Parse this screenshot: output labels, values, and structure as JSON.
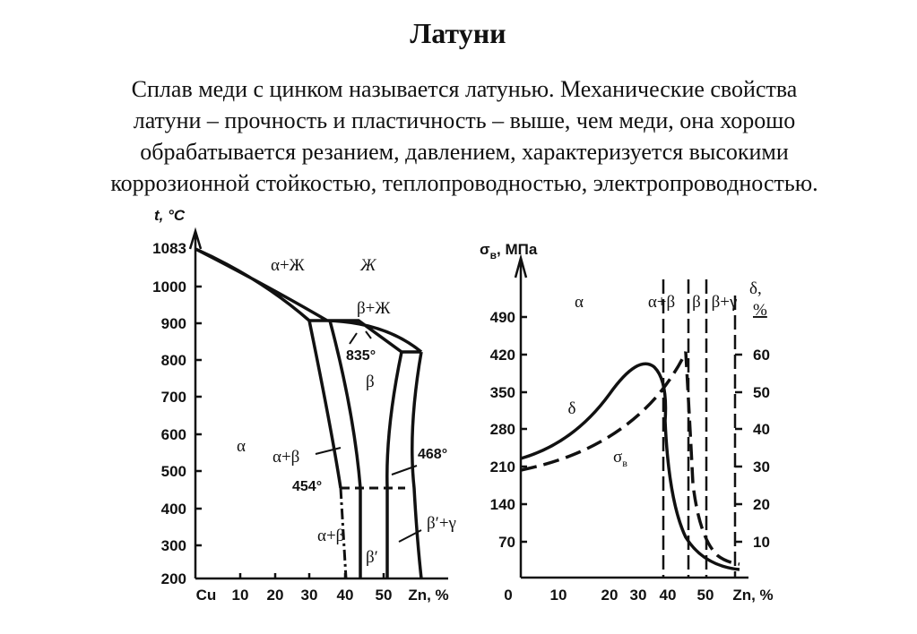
{
  "header": {
    "title": "Латуни"
  },
  "paragraph": [
    "Сплав меди с цинком называется латунью. Механические свойства",
    "латуни – прочность и пластичность – выше, чем меди, она хорошо",
    "обрабатывается резанием, давлением, характеризуется высокими",
    "коррозионной стойкостью, теплопроводностью, электропроводностью."
  ],
  "phase_diagram": {
    "y_axis_label": "t, °C",
    "y_ticks": [
      "1083",
      "1000",
      "900",
      "800",
      "700",
      "600",
      "500",
      "400",
      "300",
      "200"
    ],
    "x_ticks": [
      "Cu",
      "10",
      "20",
      "30",
      "40",
      "50",
      "Zn, %"
    ],
    "regions": [
      "α+Ж",
      "Ж",
      "β+Ж",
      "835°",
      "β",
      "α",
      "α+β",
      "454°",
      "468°",
      "α+β",
      "β′",
      "β′+γ"
    ]
  },
  "property_diagram": {
    "y_axis_label": {
      "symbol": "σ",
      "subscript": "в",
      "unit": ", МПа"
    },
    "y_ticks": [
      "490",
      "420",
      "350",
      "280",
      "210",
      "140",
      "70"
    ],
    "y2_axis_label": [
      "δ,",
      "%"
    ],
    "y2_ticks": [
      "60",
      "50",
      "40",
      "30",
      "20",
      "10"
    ],
    "x_ticks": [
      "0",
      "10",
      "20",
      "30",
      "40",
      "50",
      "Zn, %"
    ],
    "regions": [
      "α",
      "α+β",
      "β",
      "β+γ"
    ],
    "curve_labels": {
      "delta": "δ",
      "sigma": {
        "symbol": "σ",
        "subscript": "в"
      }
    }
  }
}
